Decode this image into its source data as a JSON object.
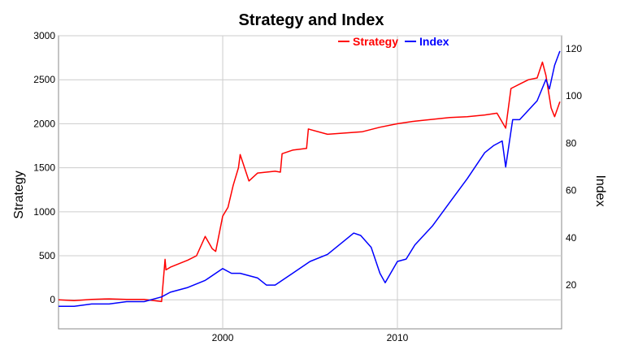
{
  "colors": {
    "strategy": "#ff0000",
    "index": "#0000ff",
    "grid": "#cccccc",
    "axis": "#888888"
  },
  "chart_data": {
    "type": "line",
    "title": "Strategy and Index",
    "xlabel": "",
    "ylabel": "Strategy",
    "y2label": "Index",
    "xlim": [
      1990.6,
      2019.4
    ],
    "ylim": [
      -330,
      3000
    ],
    "y2lim": [
      1.5,
      125.5
    ],
    "x_ticks": [
      2000,
      2010
    ],
    "x_tick_labels": [
      "2000",
      "2010"
    ],
    "y_ticks": [
      0,
      500,
      1000,
      1500,
      2000,
      2500,
      3000
    ],
    "y_tick_labels": [
      "0",
      "500",
      "1000",
      "1500",
      "2000",
      "2500",
      "3000"
    ],
    "y2_ticks": [
      20,
      40,
      60,
      80,
      100,
      120
    ],
    "y2_tick_labels": [
      "20",
      "40",
      "60",
      "80",
      "100",
      "120"
    ],
    "grid": true,
    "legend_position": "top-center",
    "series": [
      {
        "name": "Strategy",
        "axis": "left",
        "x": [
          1990.6,
          1991.5,
          1992.5,
          1993.5,
          1994.5,
          1995.5,
          1996.5,
          1996.7,
          1996.75,
          1997.0,
          1998.0,
          1998.5,
          1999.0,
          1999.4,
          1999.6,
          2000.0,
          2000.3,
          2000.6,
          2000.9,
          2001.0,
          2001.5,
          2002.0,
          2003.0,
          2003.3,
          2003.4,
          2004.0,
          2004.8,
          2004.9,
          2006.0,
          2008.0,
          2009.0,
          2010.0,
          2011.0,
          2012.0,
          2013.0,
          2014.0,
          2015.0,
          2015.7,
          2016.2,
          2016.5,
          2017.0,
          2017.5,
          2018.0,
          2018.3,
          2018.5,
          2018.8,
          2019.0,
          2019.3
        ],
        "y": [
          0,
          -10,
          5,
          10,
          5,
          5,
          -20,
          460,
          340,
          370,
          450,
          500,
          720,
          580,
          550,
          950,
          1050,
          1300,
          1500,
          1650,
          1350,
          1440,
          1460,
          1450,
          1660,
          1700,
          1720,
          1940,
          1880,
          1910,
          1960,
          2000,
          2030,
          2050,
          2070,
          2080,
          2100,
          2120,
          1950,
          2400,
          2450,
          2500,
          2520,
          2700,
          2550,
          2180,
          2080,
          2250
        ]
      },
      {
        "name": "Index",
        "axis": "right",
        "x": [
          1990.6,
          1991.5,
          1992.5,
          1993.5,
          1994.5,
          1995.5,
          1996.5,
          1997.0,
          1998.0,
          1999.0,
          2000.0,
          2000.5,
          2001.0,
          2002.0,
          2002.5,
          2003.0,
          2004.0,
          2005.0,
          2006.0,
          2007.0,
          2007.5,
          2007.9,
          2008.5,
          2009.0,
          2009.3,
          2010.0,
          2010.5,
          2011.0,
          2012.0,
          2013.0,
          2014.0,
          2015.0,
          2015.5,
          2016.0,
          2016.2,
          2016.6,
          2017.0,
          2018.0,
          2018.5,
          2018.7,
          2019.0,
          2019.3
        ],
        "y": [
          11,
          11,
          12,
          12,
          13,
          13,
          15,
          17,
          19,
          22,
          27,
          25,
          25,
          23,
          20,
          20,
          25,
          30,
          33,
          39,
          42,
          41,
          36,
          25,
          21,
          30,
          31,
          37,
          45,
          55,
          65,
          76,
          79,
          81,
          70,
          90,
          90,
          98,
          107,
          103,
          113,
          119
        ]
      }
    ]
  }
}
